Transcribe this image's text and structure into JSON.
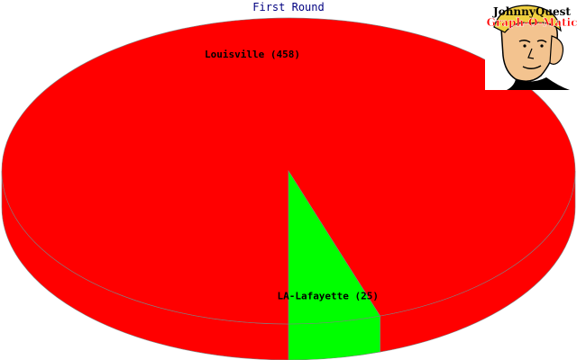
{
  "chart_data": {
    "type": "pie",
    "title": "First Round",
    "slices": [
      {
        "label": "Louisville (458)",
        "name": "Louisville",
        "value": 458,
        "color": "#ff0000"
      },
      {
        "label": "LA-Lafayette (25)",
        "name": "LA-Lafayette",
        "value": 25,
        "color": "#00ff00"
      }
    ],
    "style": "3d"
  },
  "logo": {
    "line1": "JohnnyQuest",
    "line2": "Graph-O-Matic",
    "line1_color": "#000000",
    "line2_color": "#ff0000"
  }
}
